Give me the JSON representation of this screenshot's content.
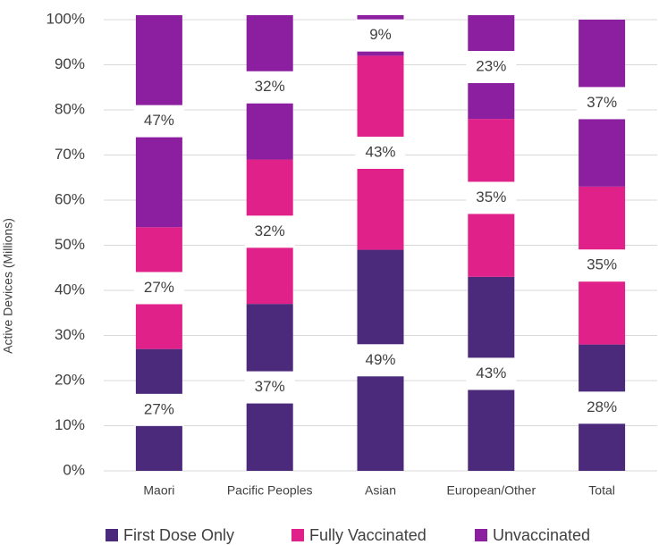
{
  "chart_data": {
    "type": "stacked_bar",
    "y_label": "Active Devices (Millions)",
    "categories": [
      "Maori",
      "Pacific Peoples",
      "Asian",
      "European/Other",
      "Total"
    ],
    "series": [
      {
        "name": "First Dose Only",
        "color": "#4b2a7b",
        "values": [
          27,
          37,
          49,
          43,
          28
        ],
        "value_labels": [
          "27%",
          "37%",
          "49%",
          "43%",
          "28%"
        ]
      },
      {
        "name": "Fully Vaccinated",
        "color": "#e0218a",
        "values": [
          27,
          32,
          43,
          35,
          35
        ],
        "value_labels": [
          "27%",
          "32%",
          "43%",
          "35%",
          "35%"
        ]
      },
      {
        "name": "Unvaccinated",
        "color": "#8b1fa0",
        "values": [
          47,
          32,
          9,
          23,
          37
        ],
        "value_labels": [
          "47%",
          "32%",
          "9%",
          "23%",
          "37%"
        ]
      }
    ],
    "ylim": [
      0,
      100
    ],
    "yticks": [
      {
        "value": 0,
        "label": "0%"
      },
      {
        "value": 10,
        "label": "10%"
      },
      {
        "value": 20,
        "label": "20%"
      },
      {
        "value": 30,
        "label": "30%"
      },
      {
        "value": 40,
        "label": "40%"
      },
      {
        "value": 50,
        "label": "50%"
      },
      {
        "value": 60,
        "label": "60%"
      },
      {
        "value": 70,
        "label": "70%"
      },
      {
        "value": 80,
        "label": "80%"
      },
      {
        "value": 90,
        "label": "90%"
      },
      {
        "value": 100,
        "label": "100%"
      }
    ],
    "grid": true
  }
}
